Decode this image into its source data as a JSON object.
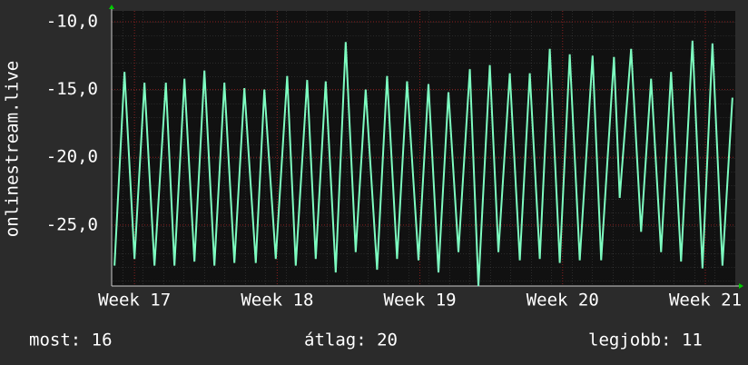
{
  "chart_data": {
    "type": "line",
    "y_label": "onlinestream.live",
    "x": [
      16.86,
      16.93,
      17.0,
      17.07,
      17.14,
      17.22,
      17.28,
      17.35,
      17.42,
      17.49,
      17.56,
      17.63,
      17.7,
      17.77,
      17.85,
      17.91,
      17.99,
      18.07,
      18.13,
      18.21,
      18.27,
      18.34,
      18.41,
      18.48,
      18.55,
      18.62,
      18.7,
      18.77,
      18.84,
      18.91,
      18.99,
      19.06,
      19.13,
      19.2,
      19.27,
      19.35,
      19.41,
      19.49,
      19.55,
      19.63,
      19.7,
      19.77,
      19.84,
      19.91,
      19.98,
      20.05,
      20.12,
      20.21,
      20.27,
      20.36,
      20.4,
      20.48,
      20.55,
      20.62,
      20.69,
      20.76,
      20.83,
      20.91,
      20.98,
      21.05,
      21.12,
      21.19
    ],
    "series": [
      {
        "color": "#7dfcc0",
        "values": [
          -28,
          -13.7,
          -27.5,
          -14.5,
          -28,
          -14.5,
          -28,
          -14.2,
          -27.7,
          -13.6,
          -28,
          -14.5,
          -27.8,
          -14.9,
          -27.8,
          -15,
          -27.5,
          -14,
          -28,
          -14.3,
          -27.5,
          -14.4,
          -28.5,
          -11.5,
          -27,
          -15,
          -28.3,
          -14,
          -27.5,
          -14.4,
          -27.6,
          -14.6,
          -28.5,
          -15.2,
          -27,
          -13.5,
          -29.5,
          -13.2,
          -27,
          -13.8,
          -27.6,
          -13.8,
          -27.5,
          -12,
          -27.8,
          -12.4,
          -27.6,
          -12.5,
          -27.6,
          -12.6,
          -23,
          -12,
          -25.5,
          -14.2,
          -27,
          -13.7,
          -27.7,
          -11.4,
          -28.2,
          -11.6,
          -28,
          -15.6
        ]
      }
    ],
    "xlim": [
      16.84,
      21.21
    ],
    "xticks": [
      {
        "value": 17,
        "label": "Week 17"
      },
      {
        "value": 18,
        "label": "Week 18"
      },
      {
        "value": 19,
        "label": "Week 19"
      },
      {
        "value": 20,
        "label": "Week 20"
      },
      {
        "value": 21,
        "label": "Week 21"
      }
    ],
    "ylim": [
      -29.5,
      -9.2
    ],
    "yticks": [
      {
        "value": -10,
        "label": "-10,0"
      },
      {
        "value": -15,
        "label": "-15,0"
      },
      {
        "value": -20,
        "label": "-20,0"
      },
      {
        "value": -25,
        "label": "-25,0"
      }
    ],
    "grid": true,
    "footer": {
      "current": "most: 16",
      "average": "átlag: 20",
      "best": "legjobb: 11"
    }
  }
}
